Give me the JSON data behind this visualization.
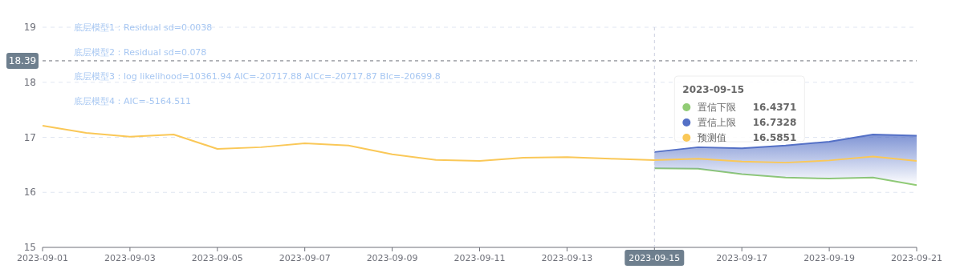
{
  "chart_data": {
    "type": "line",
    "x": [
      "2023-09-01",
      "2023-09-02",
      "2023-09-03",
      "2023-09-04",
      "2023-09-05",
      "2023-09-06",
      "2023-09-07",
      "2023-09-08",
      "2023-09-09",
      "2023-09-10",
      "2023-09-11",
      "2023-09-12",
      "2023-09-13",
      "2023-09-14",
      "2023-09-15",
      "2023-09-16",
      "2023-09-17",
      "2023-09-18",
      "2023-09-19",
      "2023-09-20",
      "2023-09-21"
    ],
    "series": [
      {
        "name": "置信下限",
        "color": "#91cc75",
        "values": [
          null,
          null,
          null,
          null,
          null,
          null,
          null,
          null,
          null,
          null,
          null,
          null,
          null,
          null,
          16.4371,
          16.43,
          16.33,
          16.27,
          16.25,
          16.27,
          16.13
        ]
      },
      {
        "name": "置信上限",
        "color": "#5470c6",
        "type": "area",
        "values": [
          null,
          null,
          null,
          null,
          null,
          null,
          null,
          null,
          null,
          null,
          null,
          null,
          null,
          null,
          16.7328,
          16.82,
          16.8,
          16.85,
          16.92,
          17.05,
          17.03
        ]
      },
      {
        "name": "预测值",
        "color": "#fac858",
        "values": [
          17.21,
          17.08,
          17.01,
          17.05,
          16.79,
          16.82,
          16.89,
          16.85,
          16.69,
          16.59,
          16.57,
          16.63,
          16.64,
          16.61,
          16.5851,
          16.61,
          16.56,
          16.54,
          16.58,
          16.65,
          16.57
        ]
      }
    ],
    "xlim": [
      "2023-09-01",
      "2023-09-21"
    ],
    "xticks": [
      "2023-09-01",
      "2023-09-03",
      "2023-09-05",
      "2023-09-07",
      "2023-09-09",
      "2023-09-11",
      "2023-09-13",
      "2023-09-15",
      "2023-09-17",
      "2023-09-19",
      "2023-09-21"
    ],
    "ylim": [
      15,
      19
    ],
    "yticks": [
      15,
      16,
      17,
      18,
      19
    ],
    "grid": "y",
    "legend": "top right",
    "marker": "none",
    "line_style": "solid",
    "ref_lines": [
      {
        "axis": "y",
        "value": 18.39,
        "label": "18.39",
        "color": "#6e7079",
        "line_style": "dashed"
      },
      {
        "axis": "x",
        "value": "2023-09-15",
        "label": "2023-09-15",
        "color": "#ccd0e0",
        "line_style": "dashed"
      }
    ],
    "annotations": [
      "底层模型1：Residual sd=0.0038",
      "底层模型2：Residual sd=0.078",
      "底层模型3：log likelihood=10361.94 AIC=-20717.88 AICc=-20717.87 BIc=-20699.8",
      "底层模型4：AIC=-5164.511",
      "2023-09-15",
      "16.4371",
      "16.7328",
      "16.5851"
    ]
  }
}
